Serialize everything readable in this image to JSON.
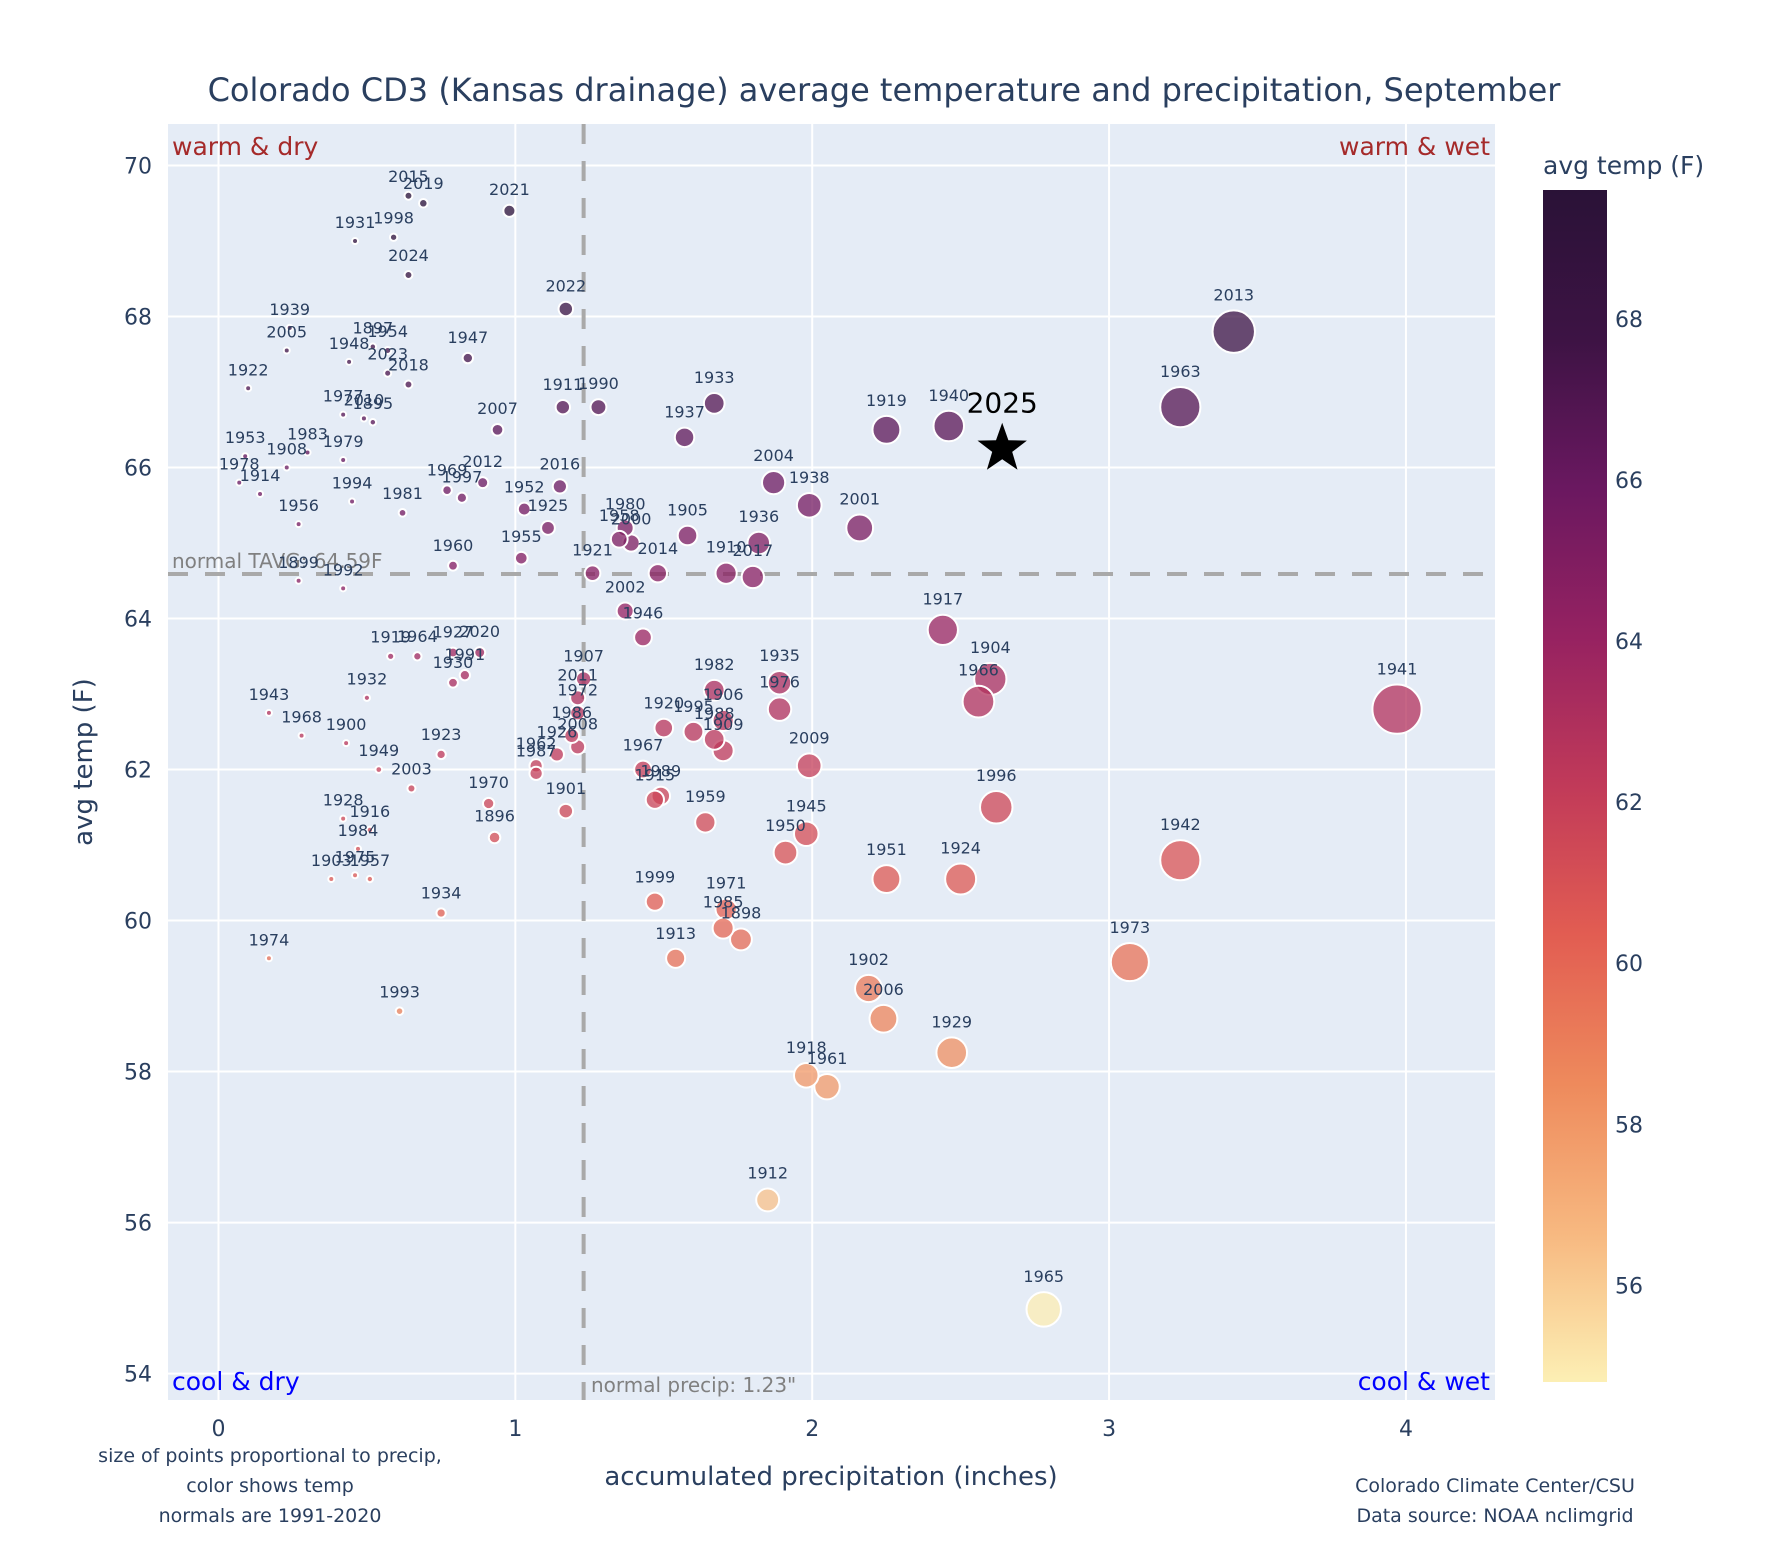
{
  "chart_data": {
    "type": "scatter",
    "title": "Colorado CD3 (Kansas drainage) average temperature and precipitation, September",
    "xlabel": "accumulated precipitation (inches)",
    "ylabel": "avg temp (F)",
    "xlim": [
      -0.17,
      4.3
    ],
    "ylim": [
      53.65,
      70.55
    ],
    "x_ticks": [
      0,
      1,
      2,
      3,
      4
    ],
    "y_ticks": [
      54,
      56,
      58,
      60,
      62,
      64,
      66,
      68,
      70
    ],
    "grid": true,
    "colorbar": {
      "title": "avg temp (F)",
      "range": [
        54.8,
        69.6
      ],
      "ticks": [
        56,
        58,
        60,
        62,
        64,
        66,
        68
      ],
      "colorscale": [
        "#fcefb4",
        "#f7b880",
        "#ee8a5c",
        "#e25d52",
        "#c13a59",
        "#962261",
        "#6a1860",
        "#3d1344",
        "#2a1237"
      ]
    },
    "normals": {
      "temp": 64.59,
      "temp_label": "normal TAVG: 64.59F",
      "precip": 1.23,
      "precip_label": "normal precip: 1.23\""
    },
    "quadrant_labels": {
      "top_left": "warm & dry",
      "top_right": "warm & wet",
      "bottom_left": "cool & dry",
      "bottom_right": "cool & wet"
    },
    "highlight": {
      "year": "2025",
      "x": 2.64,
      "temp": 66.25,
      "marker": "star"
    },
    "points": [
      {
        "year": "2015",
        "x": 0.64,
        "y": 69.6
      },
      {
        "year": "2019",
        "x": 0.69,
        "y": 69.5
      },
      {
        "year": "2021",
        "x": 0.98,
        "y": 69.4
      },
      {
        "year": "1931",
        "x": 0.46,
        "y": 69.0
      },
      {
        "year": "1998",
        "x": 0.59,
        "y": 69.05
      },
      {
        "year": "2024",
        "x": 0.64,
        "y": 68.55
      },
      {
        "year": "2022",
        "x": 1.17,
        "y": 68.1
      },
      {
        "year": "1939",
        "x": 0.24,
        "y": 67.85
      },
      {
        "year": "2005",
        "x": 0.23,
        "y": 67.55
      },
      {
        "year": "1897",
        "x": 0.52,
        "y": 67.6
      },
      {
        "year": "1954",
        "x": 0.57,
        "y": 67.55
      },
      {
        "year": "1948",
        "x": 0.44,
        "y": 67.4
      },
      {
        "year": "2023",
        "x": 0.57,
        "y": 67.25
      },
      {
        "year": "2018",
        "x": 0.64,
        "y": 67.1
      },
      {
        "year": "1947",
        "x": 0.84,
        "y": 67.45
      },
      {
        "year": "1922",
        "x": 0.1,
        "y": 67.05
      },
      {
        "year": "1977",
        "x": 0.42,
        "y": 66.7
      },
      {
        "year": "2010",
        "x": 0.49,
        "y": 66.65
      },
      {
        "year": "1895",
        "x": 0.52,
        "y": 66.6
      },
      {
        "year": "1911",
        "x": 1.16,
        "y": 66.8
      },
      {
        "year": "1990",
        "x": 1.28,
        "y": 66.8
      },
      {
        "year": "1933",
        "x": 1.67,
        "y": 66.85
      },
      {
        "year": "1937",
        "x": 1.57,
        "y": 66.4
      },
      {
        "year": "2007",
        "x": 0.94,
        "y": 66.5
      },
      {
        "year": "1953",
        "x": 0.09,
        "y": 66.15
      },
      {
        "year": "1983",
        "x": 0.3,
        "y": 66.2
      },
      {
        "year": "1908",
        "x": 0.23,
        "y": 66.0
      },
      {
        "year": "1979",
        "x": 0.42,
        "y": 66.1
      },
      {
        "year": "1978",
        "x": 0.07,
        "y": 65.8
      },
      {
        "year": "1914",
        "x": 0.14,
        "y": 65.65
      },
      {
        "year": "1994",
        "x": 0.45,
        "y": 65.55
      },
      {
        "year": "1981",
        "x": 0.62,
        "y": 65.4
      },
      {
        "year": "1969",
        "x": 0.77,
        "y": 65.7
      },
      {
        "year": "1997",
        "x": 0.82,
        "y": 65.6
      },
      {
        "year": "2012",
        "x": 0.89,
        "y": 65.8
      },
      {
        "year": "1952",
        "x": 1.03,
        "y": 65.45
      },
      {
        "year": "2016",
        "x": 1.15,
        "y": 65.75
      },
      {
        "year": "1925",
        "x": 1.11,
        "y": 65.2
      },
      {
        "year": "1956",
        "x": 0.27,
        "y": 65.25
      },
      {
        "year": "1955",
        "x": 1.02,
        "y": 64.8
      },
      {
        "year": "1960",
        "x": 0.79,
        "y": 64.7
      },
      {
        "year": "1899",
        "x": 0.27,
        "y": 64.5
      },
      {
        "year": "1992",
        "x": 0.42,
        "y": 64.4
      },
      {
        "year": "1921",
        "x": 1.26,
        "y": 64.6
      },
      {
        "year": "1980",
        "x": 1.37,
        "y": 65.2
      },
      {
        "year": "1958",
        "x": 1.35,
        "y": 65.05
      },
      {
        "year": "2000",
        "x": 1.39,
        "y": 65.0
      },
      {
        "year": "2014",
        "x": 1.48,
        "y": 64.6
      },
      {
        "year": "1905",
        "x": 1.58,
        "y": 65.1
      },
      {
        "year": "1910",
        "x": 1.71,
        "y": 64.6
      },
      {
        "year": "2017",
        "x": 1.8,
        "y": 64.55
      },
      {
        "year": "1936",
        "x": 1.82,
        "y": 65.0
      },
      {
        "year": "2004",
        "x": 1.87,
        "y": 65.8
      },
      {
        "year": "1938",
        "x": 1.99,
        "y": 65.5
      },
      {
        "year": "2001",
        "x": 2.16,
        "y": 65.2
      },
      {
        "year": "1919",
        "x": 2.25,
        "y": 66.5
      },
      {
        "year": "1940",
        "x": 2.46,
        "y": 66.55
      },
      {
        "year": "2013",
        "x": 3.42,
        "y": 67.8
      },
      {
        "year": "1963",
        "x": 3.24,
        "y": 66.8
      },
      {
        "year": "2002",
        "x": 1.37,
        "y": 64.1
      },
      {
        "year": "1946",
        "x": 1.43,
        "y": 63.75
      },
      {
        "year": "1917",
        "x": 2.44,
        "y": 63.85
      },
      {
        "year": "1904",
        "x": 2.6,
        "y": 63.2
      },
      {
        "year": "1966",
        "x": 2.56,
        "y": 62.9
      },
      {
        "year": "1941",
        "x": 3.97,
        "y": 62.8
      },
      {
        "year": "1919b",
        "x": 0.58,
        "y": 63.5
      },
      {
        "year": "1964",
        "x": 0.67,
        "y": 63.5
      },
      {
        "year": "1927",
        "x": 0.79,
        "y": 63.55
      },
      {
        "year": "2020",
        "x": 0.88,
        "y": 63.55
      },
      {
        "year": "1930",
        "x": 0.79,
        "y": 63.15
      },
      {
        "year": "1991",
        "x": 0.83,
        "y": 63.25
      },
      {
        "year": "1907",
        "x": 1.23,
        "y": 63.2
      },
      {
        "year": "2011",
        "x": 1.21,
        "y": 62.95
      },
      {
        "year": "1972",
        "x": 1.21,
        "y": 62.75
      },
      {
        "year": "1986",
        "x": 1.19,
        "y": 62.45
      },
      {
        "year": "2008",
        "x": 1.21,
        "y": 62.3
      },
      {
        "year": "1926",
        "x": 1.14,
        "y": 62.2
      },
      {
        "year": "1962",
        "x": 1.07,
        "y": 62.05
      },
      {
        "year": "1987",
        "x": 1.07,
        "y": 61.95
      },
      {
        "year": "1932",
        "x": 0.5,
        "y": 62.95
      },
      {
        "year": "1943",
        "x": 0.17,
        "y": 62.75
      },
      {
        "year": "1968",
        "x": 0.28,
        "y": 62.45
      },
      {
        "year": "1900",
        "x": 0.43,
        "y": 62.35
      },
      {
        "year": "1923",
        "x": 0.75,
        "y": 62.2
      },
      {
        "year": "1949",
        "x": 0.54,
        "y": 62.0
      },
      {
        "year": "2003",
        "x": 0.65,
        "y": 61.75
      },
      {
        "year": "1970",
        "x": 0.91,
        "y": 61.55
      },
      {
        "year": "1896",
        "x": 0.93,
        "y": 61.1
      },
      {
        "year": "1901",
        "x": 1.17,
        "y": 61.45
      },
      {
        "year": "1928",
        "x": 0.42,
        "y": 61.35
      },
      {
        "year": "1916",
        "x": 0.51,
        "y": 61.2
      },
      {
        "year": "1984",
        "x": 0.47,
        "y": 60.95
      },
      {
        "year": "1975",
        "x": 0.46,
        "y": 60.6
      },
      {
        "year": "1957",
        "x": 0.51,
        "y": 60.55
      },
      {
        "year": "1903",
        "x": 0.38,
        "y": 60.55
      },
      {
        "year": "1934",
        "x": 0.75,
        "y": 60.1
      },
      {
        "year": "1974",
        "x": 0.17,
        "y": 59.5
      },
      {
        "year": "1993",
        "x": 0.61,
        "y": 58.8
      },
      {
        "year": "1982",
        "x": 1.67,
        "y": 63.05
      },
      {
        "year": "1935",
        "x": 1.89,
        "y": 63.15
      },
      {
        "year": "1976",
        "x": 1.89,
        "y": 62.8
      },
      {
        "year": "1920",
        "x": 1.5,
        "y": 62.55
      },
      {
        "year": "1995",
        "x": 1.6,
        "y": 62.5
      },
      {
        "year": "1906",
        "x": 1.7,
        "y": 62.65
      },
      {
        "year": "1988",
        "x": 1.67,
        "y": 62.4
      },
      {
        "year": "1909",
        "x": 1.7,
        "y": 62.25
      },
      {
        "year": "1967",
        "x": 1.43,
        "y": 62.0
      },
      {
        "year": "1989",
        "x": 1.49,
        "y": 61.65
      },
      {
        "year": "1915",
        "x": 1.47,
        "y": 61.6
      },
      {
        "year": "1959",
        "x": 1.64,
        "y": 61.3
      },
      {
        "year": "2009",
        "x": 1.99,
        "y": 62.05
      },
      {
        "year": "1945",
        "x": 1.98,
        "y": 61.15
      },
      {
        "year": "1950",
        "x": 1.91,
        "y": 60.9
      },
      {
        "year": "1996",
        "x": 2.62,
        "y": 61.5
      },
      {
        "year": "1951",
        "x": 2.25,
        "y": 60.55
      },
      {
        "year": "1924",
        "x": 2.5,
        "y": 60.55
      },
      {
        "year": "1942",
        "x": 3.24,
        "y": 60.8
      },
      {
        "year": "1999",
        "x": 1.47,
        "y": 60.25
      },
      {
        "year": "1971",
        "x": 1.71,
        "y": 60.15
      },
      {
        "year": "1985",
        "x": 1.7,
        "y": 59.9
      },
      {
        "year": "1898",
        "x": 1.76,
        "y": 59.75
      },
      {
        "year": "1913",
        "x": 1.54,
        "y": 59.5
      },
      {
        "year": "1902",
        "x": 2.19,
        "y": 59.1
      },
      {
        "year": "2006",
        "x": 2.24,
        "y": 58.7
      },
      {
        "year": "1929",
        "x": 2.47,
        "y": 58.25
      },
      {
        "year": "1973",
        "x": 3.07,
        "y": 59.45
      },
      {
        "year": "1918",
        "x": 1.98,
        "y": 57.95
      },
      {
        "year": "1961",
        "x": 2.05,
        "y": 57.8
      },
      {
        "year": "1912",
        "x": 1.85,
        "y": 56.3
      },
      {
        "year": "1965",
        "x": 2.78,
        "y": 54.85
      }
    ],
    "footnotes": {
      "left": [
        "size of points proportional to precip,",
        "color shows temp",
        "normals are 1991-2020"
      ],
      "right": [
        "Colorado Climate Center/CSU",
        "Data source: NOAA nclimgrid"
      ]
    }
  }
}
